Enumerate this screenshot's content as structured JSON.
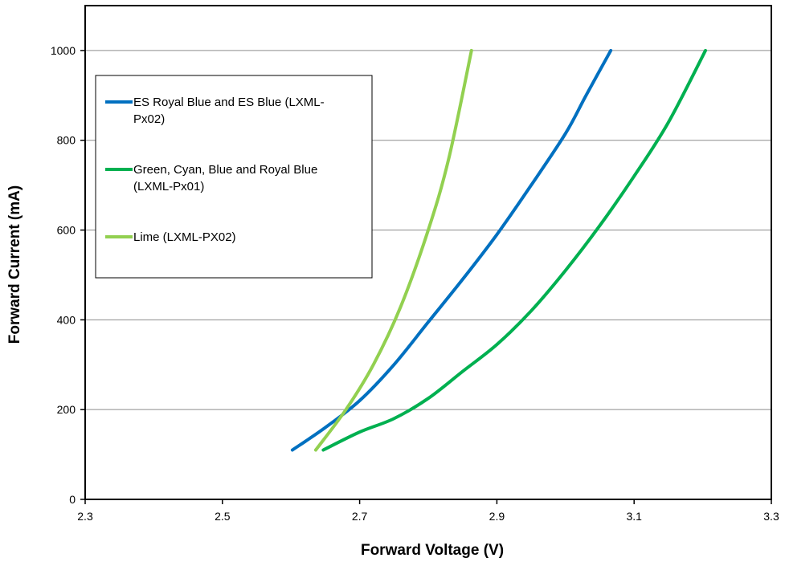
{
  "chart_data": {
    "type": "line",
    "title": "",
    "xlabel": "Forward Voltage (V)",
    "ylabel": "Forward Current (mA)",
    "xlim": [
      2.3,
      3.3
    ],
    "ylim": [
      0,
      1100
    ],
    "xticks": [
      2.3,
      2.5,
      2.7,
      2.9,
      3.1,
      3.3
    ],
    "xtick_labels": [
      "2.3",
      "2.5",
      "2.7",
      "2.9",
      "3.1",
      "3.3"
    ],
    "yticks": [
      0,
      200,
      400,
      600,
      800,
      1000
    ],
    "ytick_labels": [
      "0",
      "200",
      "400",
      "600",
      "800",
      "1000"
    ],
    "grid": "horizontal",
    "legend_position": "upper-left",
    "series": [
      {
        "name": "ES Royal Blue and ES Blue (LXML-Px02)",
        "legend_lines": [
          "ES Royal Blue and ES Blue (LXML-",
          "Px02)"
        ],
        "color": "#0070C0",
        "points": [
          [
            2.602,
            110
          ],
          [
            2.65,
            160
          ],
          [
            2.7,
            220
          ],
          [
            2.75,
            300
          ],
          [
            2.8,
            395
          ],
          [
            2.85,
            490
          ],
          [
            2.9,
            590
          ],
          [
            2.95,
            700
          ],
          [
            3.0,
            815
          ],
          [
            3.03,
            900
          ],
          [
            3.066,
            1000
          ]
        ]
      },
      {
        "name": "Green, Cyan, Blue and Royal Blue (LXML-Px01)",
        "legend_lines": [
          "Green, Cyan, Blue and Royal Blue",
          "(LXML-Px01)"
        ],
        "color": "#00B050",
        "points": [
          [
            2.647,
            110
          ],
          [
            2.7,
            150
          ],
          [
            2.75,
            180
          ],
          [
            2.8,
            225
          ],
          [
            2.85,
            285
          ],
          [
            2.9,
            345
          ],
          [
            2.95,
            420
          ],
          [
            3.0,
            510
          ],
          [
            3.05,
            610
          ],
          [
            3.1,
            720
          ],
          [
            3.15,
            840
          ],
          [
            3.204,
            1000
          ]
        ]
      },
      {
        "name": "Lime (LXML-PX02)",
        "legend_lines": [
          "Lime (LXML-PX02)"
        ],
        "color": "#92D050",
        "points": [
          [
            2.636,
            110
          ],
          [
            2.68,
            200
          ],
          [
            2.72,
            300
          ],
          [
            2.76,
            430
          ],
          [
            2.8,
            600
          ],
          [
            2.83,
            760
          ],
          [
            2.863,
            1000
          ]
        ]
      }
    ]
  }
}
